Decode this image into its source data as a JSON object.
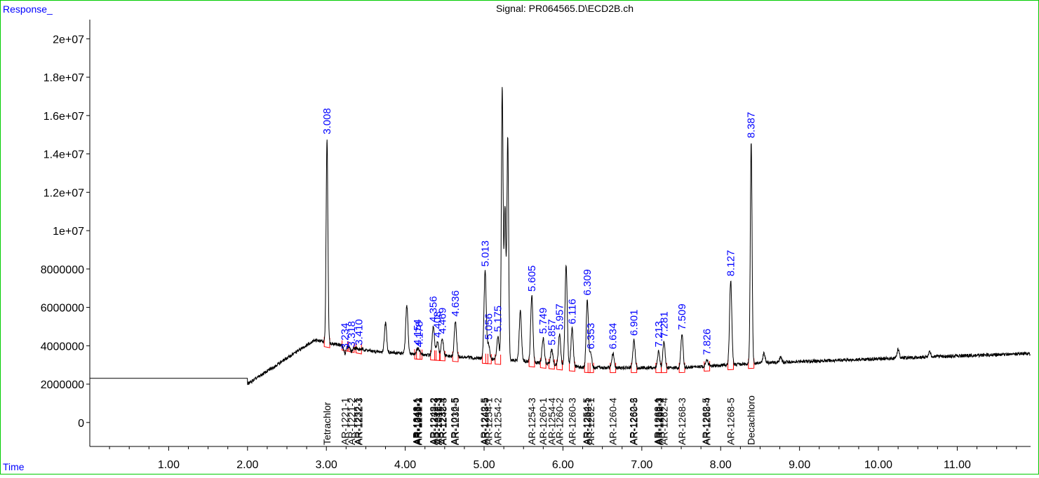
{
  "header": {
    "y_axis_label": "Response_",
    "signal_title": "Signal: PR064565.D\\ECD2B.ch",
    "x_axis_label": "Time"
  },
  "colors": {
    "trace": "#000000",
    "labels": "#0000ff",
    "baseline_marks": "#ff0000",
    "frame": "#00cc00"
  },
  "chart_data": {
    "type": "line",
    "title": "Signal: PR064565.D\\ECD2B.ch",
    "xlabel": "Time",
    "ylabel": "Response_",
    "xlim": [
      0.0,
      11.93
    ],
    "ylim": [
      -1250000,
      21000000
    ],
    "x_ticks": [
      "1.00",
      "2.00",
      "3.00",
      "4.00",
      "5.00",
      "6.00",
      "7.00",
      "8.00",
      "9.00",
      "10.00",
      "11.00"
    ],
    "y_ticks": [
      "0",
      "2000000",
      "4000000",
      "6000000",
      "8000000",
      "1e+07",
      "1.2e+07",
      "1.4e+07",
      "1.6e+07",
      "1.8e+07",
      "2e+07"
    ],
    "flat_level": 2300000,
    "peaks": [
      {
        "rt": 3.008,
        "label": "3.008",
        "height": 14800000
      },
      {
        "rt": 3.234,
        "label": "3.234",
        "height": 3600000
      },
      {
        "rt": 3.318,
        "label": "3.318",
        "height": 3700000
      },
      {
        "rt": 3.41,
        "label": "3.410",
        "height": 3800000
      },
      {
        "rt": 3.75,
        "label": "",
        "height": 5200000
      },
      {
        "rt": 4.02,
        "label": "",
        "height": 6100000
      },
      {
        "rt": 4.154,
        "label": "4.154",
        "height": 3800000
      },
      {
        "rt": 4.178,
        "label": "4.178",
        "height": 3700000
      },
      {
        "rt": 4.356,
        "label": "4.356",
        "height": 5000000
      },
      {
        "rt": 4.408,
        "label": "4.408",
        "height": 4200000
      },
      {
        "rt": 4.469,
        "label": "4.469",
        "height": 4400000
      },
      {
        "rt": 4.636,
        "label": "4.636",
        "height": 5300000
      },
      {
        "rt": 5.013,
        "label": "5.013",
        "height": 7900000
      },
      {
        "rt": 5.056,
        "label": "5.056",
        "height": 4100000
      },
      {
        "rt": 5.175,
        "label": "5.175",
        "height": 4500000
      },
      {
        "rt": 5.23,
        "label": "",
        "height": 17500000
      },
      {
        "rt": 5.265,
        "label": "",
        "height": 11200000
      },
      {
        "rt": 5.3,
        "label": "",
        "height": 14900000
      },
      {
        "rt": 5.46,
        "label": "",
        "height": 5800000
      },
      {
        "rt": 5.605,
        "label": "5.605",
        "height": 6600000
      },
      {
        "rt": 5.749,
        "label": "5.749",
        "height": 4400000
      },
      {
        "rt": 5.857,
        "label": "5.857",
        "height": 3800000
      },
      {
        "rt": 5.957,
        "label": "5.957",
        "height": 4600000
      },
      {
        "rt": 6.04,
        "label": "",
        "height": 8200000
      },
      {
        "rt": 6.116,
        "label": "6.116",
        "height": 4900000
      },
      {
        "rt": 6.309,
        "label": "6.309",
        "height": 6400000
      },
      {
        "rt": 6.353,
        "label": "6.353",
        "height": 3600000
      },
      {
        "rt": 6.634,
        "label": "6.634",
        "height": 3600000
      },
      {
        "rt": 6.901,
        "label": "6.901",
        "height": 4300000
      },
      {
        "rt": 7.213,
        "label": "7.213",
        "height": 3700000
      },
      {
        "rt": 7.281,
        "label": "7.281",
        "height": 4200000
      },
      {
        "rt": 7.509,
        "label": "7.509",
        "height": 4600000
      },
      {
        "rt": 7.826,
        "label": "7.826",
        "height": 3300000
      },
      {
        "rt": 8.127,
        "label": "8.127",
        "height": 7400000
      },
      {
        "rt": 8.387,
        "label": "8.387",
        "height": 14600000
      },
      {
        "rt": 8.55,
        "label": "",
        "height": 3600000
      },
      {
        "rt": 8.76,
        "label": "",
        "height": 3400000
      },
      {
        "rt": 10.25,
        "label": "",
        "height": 3800000
      },
      {
        "rt": 10.65,
        "label": "",
        "height": 3700000
      }
    ],
    "compound_labels": [
      {
        "rt": 3.008,
        "text": "Tetrachlor"
      },
      {
        "rt": 3.234,
        "text": "AR-1221-1"
      },
      {
        "rt": 3.318,
        "text": "AR-1221-2"
      },
      {
        "rt": 3.4,
        "text": "AR-1232-1"
      },
      {
        "rt": 3.41,
        "text": "AR-1222-3"
      },
      {
        "rt": 4.14,
        "text": "AR-1248-1"
      },
      {
        "rt": 4.15,
        "text": "AR-1242-1"
      },
      {
        "rt": 4.16,
        "text": "AR-1016-1"
      },
      {
        "rt": 4.17,
        "text": "AR-1232-2"
      },
      {
        "rt": 4.356,
        "text": "AR-1248-2"
      },
      {
        "rt": 4.37,
        "text": "AR-1232-3"
      },
      {
        "rt": 4.408,
        "text": "AR-1242-3"
      },
      {
        "rt": 4.42,
        "text": "AR-1016-3"
      },
      {
        "rt": 4.469,
        "text": "AR-1232-4"
      },
      {
        "rt": 4.48,
        "text": "AR-1248-3"
      },
      {
        "rt": 4.62,
        "text": "AR-1016-5"
      },
      {
        "rt": 4.636,
        "text": "AR-1232-5"
      },
      {
        "rt": 5.0,
        "text": "AR-1242-5"
      },
      {
        "rt": 5.013,
        "text": "AR-1248-5"
      },
      {
        "rt": 5.056,
        "text": "AR-1254-1"
      },
      {
        "rt": 5.175,
        "text": "AR-1254-2"
      },
      {
        "rt": 5.605,
        "text": "AR-1254-3"
      },
      {
        "rt": 5.749,
        "text": "AR-1260-1"
      },
      {
        "rt": 5.857,
        "text": "AR-1254-4"
      },
      {
        "rt": 5.957,
        "text": "AR-1260-2"
      },
      {
        "rt": 6.116,
        "text": "AR-1260-3"
      },
      {
        "rt": 6.3,
        "text": "AR-1254-5"
      },
      {
        "rt": 6.312,
        "text": "AR-1262-1"
      },
      {
        "rt": 6.353,
        "text": "AR-1262-1"
      },
      {
        "rt": 6.634,
        "text": "AR-1260-4"
      },
      {
        "rt": 6.89,
        "text": "AR-1262-2"
      },
      {
        "rt": 6.901,
        "text": "AR-1260-5"
      },
      {
        "rt": 7.2,
        "text": "AR-1268-1"
      },
      {
        "rt": 7.213,
        "text": "AR-1262-3"
      },
      {
        "rt": 7.23,
        "text": "AR-1268-2"
      },
      {
        "rt": 7.281,
        "text": "AR-1262-4"
      },
      {
        "rt": 7.509,
        "text": "AR-1268-3"
      },
      {
        "rt": 7.81,
        "text": "AR-1262-5"
      },
      {
        "rt": 7.826,
        "text": "AR-1268-4"
      },
      {
        "rt": 8.127,
        "text": "AR-1268-5"
      },
      {
        "rt": 8.387,
        "text": "Decachloro"
      }
    ],
    "grid": false,
    "legend": "none"
  }
}
